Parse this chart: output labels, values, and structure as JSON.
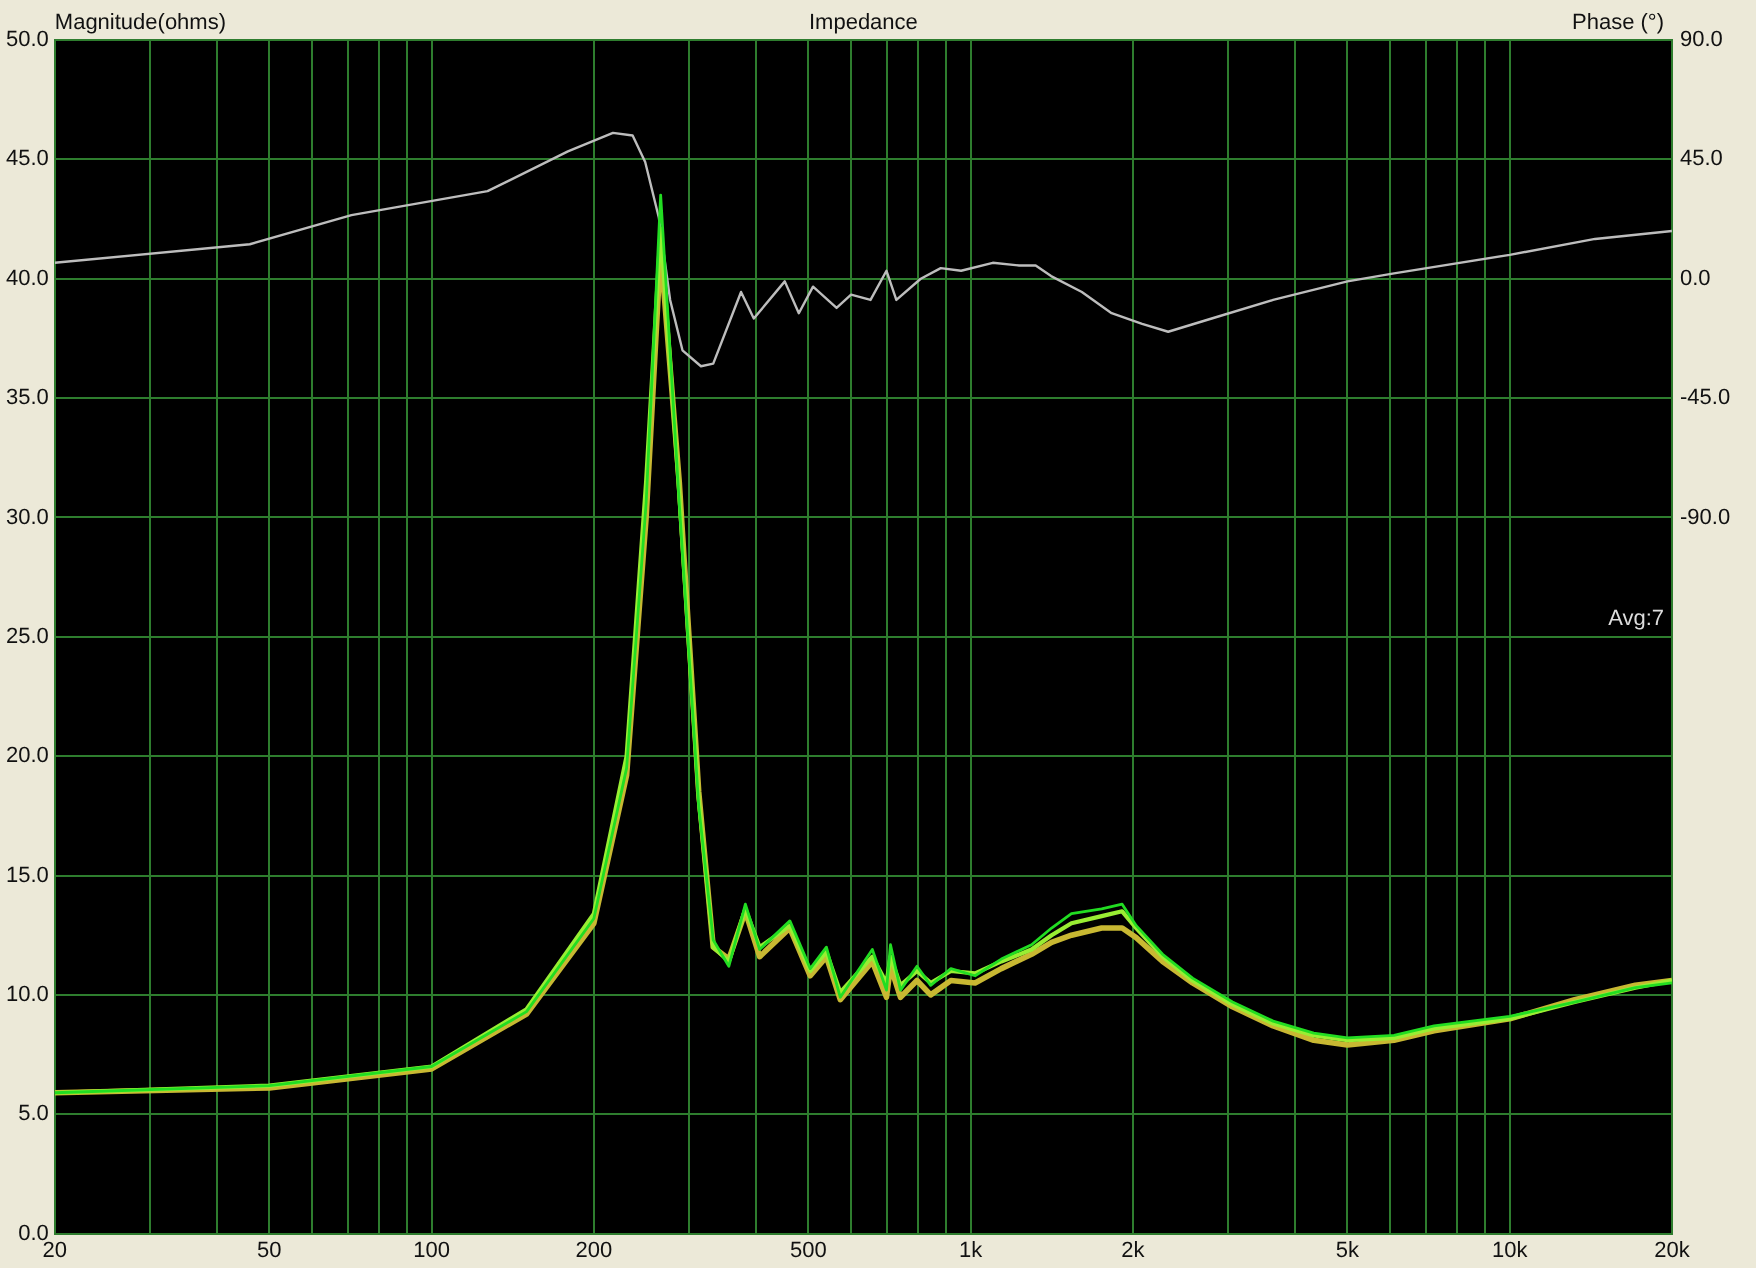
{
  "chart_data": {
    "type": "line",
    "title": "Impedance",
    "ylabel": "Magnitude(ohms)",
    "y2label": "Phase (°)",
    "annotations": [
      "Avg:7"
    ],
    "x": [
      20,
      50,
      100,
      150,
      200,
      230,
      250,
      266,
      288,
      313,
      333,
      356,
      382,
      406,
      462,
      504,
      540,
      573,
      657,
      698,
      710,
      741,
      795,
      843,
      919,
      1019,
      1140,
      1297,
      1413,
      1538,
      1750,
      1910,
      2028,
      2270,
      2580,
      3060,
      3640,
      4330,
      5000,
      6100,
      7240,
      10000,
      13200,
      17100,
      20000
    ],
    "series": [
      {
        "color": "#22dd22",
        "values": [
          5.9,
          6.2,
          7.0,
          9.3,
          13.2,
          19.5,
          30.6,
          43.5,
          30.6,
          17.9,
          12.3,
          11.2,
          13.8,
          11.9,
          13.1,
          11.1,
          12.0,
          9.9,
          11.9,
          10.2,
          12.1,
          10.2,
          11.2,
          10.4,
          11.1,
          10.8,
          11.5,
          12.1,
          12.8,
          13.4,
          13.6,
          13.8,
          12.9,
          11.7,
          10.7,
          9.7,
          8.9,
          8.4,
          8.2,
          8.3,
          8.7,
          9.1,
          9.7,
          10.3,
          10.5
        ]
      },
      {
        "color": "#99ee33",
        "values": [
          5.9,
          6.2,
          7.0,
          9.4,
          13.4,
          20.0,
          31.5,
          42.1,
          31.0,
          18.2,
          12.0,
          11.4,
          13.6,
          12.0,
          12.9,
          11.0,
          11.8,
          10.1,
          11.6,
          10.5,
          11.6,
          10.4,
          11.0,
          10.5,
          11.0,
          10.9,
          11.4,
          11.9,
          12.5,
          13.0,
          13.3,
          13.5,
          12.8,
          11.6,
          10.6,
          9.6,
          8.8,
          8.3,
          8.1,
          8.2,
          8.6,
          9.0,
          9.7,
          10.3,
          10.6
        ]
      },
      {
        "color": "#c8b832",
        "values": [
          5.9,
          6.1,
          6.9,
          9.2,
          13.0,
          19.2,
          30.0,
          41.2,
          31.5,
          18.5,
          12.0,
          11.5,
          13.5,
          11.6,
          12.8,
          10.8,
          11.6,
          9.8,
          11.4,
          9.9,
          11.2,
          9.9,
          10.6,
          10.0,
          10.6,
          10.5,
          11.1,
          11.7,
          12.2,
          12.5,
          12.8,
          12.8,
          12.4,
          11.4,
          10.5,
          9.5,
          8.7,
          8.1,
          7.9,
          8.1,
          8.5,
          9.0,
          9.8,
          10.4,
          10.6
        ]
      },
      {
        "color": "#bdbdbd",
        "axis": "y2",
        "x": [
          20,
          46,
          71,
          127,
          179,
          217,
          236,
          249,
          264,
          277,
          292,
          316,
          333,
          375,
          396,
          452,
          480,
          510,
          564,
          600,
          652,
          698,
          728,
          808,
          880,
          960,
          1099,
          1230,
          1320,
          1410,
          1608,
          1826,
          2080,
          2325,
          2800,
          3640,
          5000,
          6100,
          10000,
          14400,
          20000
        ],
        "values": [
          6,
          13,
          24,
          33,
          48,
          55,
          54,
          44,
          23,
          -8,
          -27,
          -33,
          -32,
          -5,
          -15,
          -1,
          -13,
          -3,
          -11,
          -6,
          -8,
          3,
          -8,
          0,
          4,
          3,
          6,
          5,
          5,
          1,
          -5,
          -13,
          -17,
          -20,
          -15,
          -8,
          -1,
          2,
          9,
          15,
          18
        ]
      }
    ],
    "xlim": [
      20,
      20000
    ],
    "xticks": [
      20,
      {
        "value": 30,
        "label": null
      },
      {
        "value": 40,
        "label": null
      },
      50,
      {
        "value": 60,
        "label": null
      },
      {
        "value": 70,
        "label": null
      },
      {
        "value": 80,
        "label": null
      },
      {
        "value": 90,
        "label": null
      },
      100,
      200,
      {
        "value": 300,
        "label": null
      },
      {
        "value": 400,
        "label": null
      },
      500,
      {
        "value": 600,
        "label": null
      },
      {
        "value": 700,
        "label": null
      },
      {
        "value": 800,
        "label": null
      },
      {
        "value": 900,
        "label": null
      },
      {
        "value": 1000,
        "label": "1k"
      },
      {
        "value": 2000,
        "label": "2k"
      },
      {
        "value": 3000,
        "label": null
      },
      {
        "value": 4000,
        "label": null
      },
      {
        "value": 5000,
        "label": "5k"
      },
      {
        "value": 6000,
        "label": null
      },
      {
        "value": 7000,
        "label": null
      },
      {
        "value": 8000,
        "label": null
      },
      {
        "value": 9000,
        "label": null
      },
      {
        "value": 10000,
        "label": "10k"
      },
      {
        "value": 20000,
        "label": "20k"
      }
    ],
    "ylim": [
      0,
      50
    ],
    "yticks": [
      {
        "value": 0,
        "label": "0.0"
      },
      {
        "value": 5,
        "label": "5.0"
      },
      {
        "value": 10,
        "label": "10.0"
      },
      {
        "value": 15,
        "label": "15.0"
      },
      {
        "value": 20,
        "label": "20.0"
      },
      {
        "value": 25,
        "label": "25.0"
      },
      {
        "value": 30,
        "label": "30.0"
      },
      {
        "value": 35,
        "label": "35.0"
      },
      {
        "value": 40,
        "label": "40.0"
      },
      {
        "value": 45,
        "label": "45.0"
      },
      {
        "value": 50,
        "label": "50.0"
      }
    ],
    "y2lim": [
      -360,
      90
    ],
    "y2ticks": [
      {
        "value": -90,
        "label": "-90.0"
      },
      {
        "value": -45,
        "label": "-45.0"
      },
      {
        "value": 0,
        "label": "0.0"
      },
      {
        "value": 45,
        "label": "45.0"
      },
      {
        "value": 90,
        "label": "90.0"
      }
    ],
    "log": "x",
    "grid": true,
    "marker": "none"
  }
}
